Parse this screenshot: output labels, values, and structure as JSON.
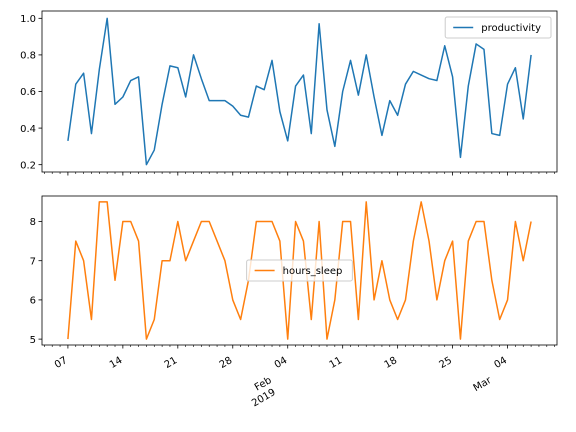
{
  "chart_data": [
    {
      "type": "line",
      "x_start": "2019-01-07",
      "ylim": [
        0.16,
        1.04
      ],
      "yticks": [
        0.2,
        0.4,
        0.6,
        0.8,
        1.0
      ],
      "ytick_labels": [
        "0.2",
        "0.4",
        "0.6",
        "0.8",
        "1.0"
      ],
      "legend_loc": "upper right",
      "series": [
        {
          "name": "productivity",
          "color": "#1f77b4",
          "values": [
            0.33,
            0.64,
            0.7,
            0.37,
            0.72,
            1.0,
            0.53,
            0.57,
            0.66,
            0.68,
            0.2,
            0.28,
            0.53,
            0.74,
            0.73,
            0.57,
            0.8,
            0.67,
            0.55,
            0.55,
            0.55,
            0.52,
            0.47,
            0.46,
            0.63,
            0.61,
            0.77,
            0.49,
            0.33,
            0.63,
            0.69,
            0.37,
            0.97,
            0.5,
            0.3,
            0.6,
            0.77,
            0.58,
            0.8,
            0.57,
            0.36,
            0.55,
            0.47,
            0.64,
            0.71,
            0.69,
            0.67,
            0.66,
            0.85,
            0.68,
            0.24,
            0.63,
            0.86,
            0.83,
            0.37,
            0.36,
            0.64,
            0.73,
            0.45,
            0.8
          ]
        }
      ]
    },
    {
      "type": "line",
      "x_start": "2019-01-07",
      "ylim": [
        4.85,
        8.65
      ],
      "yticks": [
        5,
        6,
        7,
        8
      ],
      "ytick_labels": [
        "5",
        "6",
        "7",
        "8"
      ],
      "legend_loc": "center",
      "series": [
        {
          "name": "hours_sleep",
          "color": "#ff7f0e",
          "values": [
            5.0,
            7.5,
            7.0,
            5.5,
            8.5,
            8.5,
            6.5,
            8.0,
            8.0,
            7.5,
            5.0,
            5.5,
            7.0,
            7.0,
            8.0,
            7.0,
            7.5,
            8.0,
            8.0,
            7.5,
            7.0,
            6.0,
            5.5,
            6.5,
            8.0,
            8.0,
            8.0,
            7.5,
            5.0,
            8.0,
            7.5,
            5.5,
            8.0,
            5.0,
            6.0,
            8.0,
            8.0,
            5.5,
            8.5,
            6.0,
            7.0,
            6.0,
            5.5,
            6.0,
            7.5,
            8.5,
            7.5,
            6.0,
            7.0,
            7.5,
            5.0,
            7.5,
            8.0,
            8.0,
            6.5,
            5.5,
            6.0,
            8.0,
            7.0,
            8.0
          ]
        }
      ]
    }
  ],
  "x_axis": {
    "tick_labels": [
      {
        "date": "2019-01-07",
        "label": "07"
      },
      {
        "date": "2019-01-14",
        "label": "14"
      },
      {
        "date": "2019-01-21",
        "label": "21"
      },
      {
        "date": "2019-01-28",
        "label": "28"
      },
      {
        "date": "2019-02-04",
        "label": "04"
      },
      {
        "date": "2019-02-11",
        "label": "11"
      },
      {
        "date": "2019-02-18",
        "label": "18"
      },
      {
        "date": "2019-02-25",
        "label": "25"
      },
      {
        "date": "2019-03-04",
        "label": "04"
      }
    ],
    "month_labels": [
      {
        "date": "2019-02-01",
        "label": "Feb",
        "sublabel": "2019"
      },
      {
        "date": "2019-03-01",
        "label": "Mar",
        "sublabel": ""
      }
    ]
  },
  "colors": {
    "axis": "#000000",
    "legend_border": "#cccccc",
    "background": "#ffffff"
  }
}
